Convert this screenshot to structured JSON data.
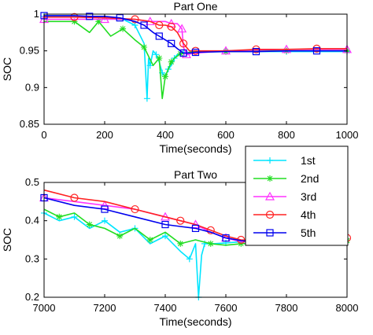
{
  "chart_data": [
    {
      "type": "line",
      "title": "Part One",
      "xlabel": "Time(seconds)",
      "ylabel": "SOC",
      "xlim": [
        0,
        1000
      ],
      "ylim": [
        0.85,
        1.0
      ],
      "xticks": [
        "0",
        "200",
        "400",
        "600",
        "800",
        "1000"
      ],
      "yticks": [
        "0.85",
        "0.9",
        "0.95",
        "1"
      ],
      "grid": false,
      "series": [
        {
          "name": "1st",
          "color": "#00e5ff",
          "marker": "plus",
          "x": [
            0,
            100,
            200,
            260,
            300,
            330,
            340,
            345,
            350,
            360,
            370,
            380,
            390,
            400,
            410,
            420,
            430,
            440,
            460,
            500,
            600,
            700,
            800,
            900,
            1000
          ],
          "y": [
            0.997,
            0.997,
            0.996,
            0.993,
            0.985,
            0.96,
            0.885,
            0.94,
            0.93,
            0.95,
            0.945,
            0.935,
            0.92,
            0.915,
            0.925,
            0.93,
            0.94,
            0.945,
            0.948,
            0.948,
            0.949,
            0.949,
            0.949,
            0.949,
            0.949
          ]
        },
        {
          "name": "2nd",
          "color": "#22dd22",
          "marker": "star",
          "x": [
            0,
            100,
            150,
            180,
            220,
            260,
            300,
            330,
            360,
            380,
            390,
            400,
            410,
            420,
            430,
            450,
            500,
            600,
            700,
            800,
            900,
            1000
          ],
          "y": [
            0.99,
            0.99,
            0.975,
            0.99,
            0.97,
            0.98,
            0.965,
            0.955,
            0.93,
            0.94,
            0.885,
            0.915,
            0.925,
            0.935,
            0.94,
            0.946,
            0.949,
            0.949,
            0.95,
            0.95,
            0.95,
            0.95
          ]
        },
        {
          "name": "3rd",
          "color": "#ff33ff",
          "marker": "triangle",
          "x": [
            0,
            100,
            200,
            300,
            350,
            400,
            420,
            440,
            455,
            460,
            470,
            500,
            600,
            700,
            800,
            900,
            1000
          ],
          "y": [
            0.993,
            0.993,
            0.993,
            0.993,
            0.99,
            0.99,
            0.987,
            0.987,
            0.98,
            0.955,
            0.945,
            0.947,
            0.95,
            0.951,
            0.952,
            0.952,
            0.952
          ]
        },
        {
          "name": "4th",
          "color": "#ff2222",
          "marker": "circle",
          "x": [
            0,
            100,
            200,
            300,
            350,
            380,
            400,
            420,
            440,
            460,
            480,
            500,
            600,
            700,
            800,
            900,
            1000
          ],
          "y": [
            0.996,
            0.996,
            0.995,
            0.993,
            0.99,
            0.985,
            0.985,
            0.983,
            0.975,
            0.96,
            0.95,
            0.95,
            0.95,
            0.952,
            0.952,
            0.953,
            0.953
          ]
        },
        {
          "name": "5th",
          "color": "#0000ee",
          "marker": "square",
          "x": [
            0,
            100,
            150,
            200,
            250,
            300,
            330,
            360,
            380,
            400,
            420,
            440,
            460,
            480,
            500,
            600,
            700,
            800,
            900,
            1000
          ],
          "y": [
            0.998,
            0.998,
            0.997,
            0.997,
            0.995,
            0.99,
            0.985,
            0.975,
            0.97,
            0.965,
            0.96,
            0.953,
            0.947,
            0.947,
            0.948,
            0.949,
            0.949,
            0.95,
            0.95,
            0.95
          ]
        }
      ]
    },
    {
      "type": "line",
      "title": "Part Two",
      "xlabel": "Time(seconds)",
      "ylabel": "SOC",
      "xlim": [
        7000,
        8000
      ],
      "ylim": [
        0.2,
        0.5
      ],
      "xticks": [
        "7000",
        "7200",
        "7400",
        "7600",
        "7800",
        "8000"
      ],
      "yticks": [
        "0.2",
        "0.3",
        "0.4",
        "0.5"
      ],
      "grid": false,
      "series": [
        {
          "name": "1st",
          "color": "#00e5ff",
          "marker": "plus",
          "x": [
            7000,
            7050,
            7100,
            7150,
            7200,
            7250,
            7300,
            7350,
            7400,
            7450,
            7480,
            7500,
            7510,
            7520,
            7530,
            7560,
            7600,
            7650,
            7700,
            7800,
            7900,
            8000
          ],
          "y": [
            0.42,
            0.4,
            0.41,
            0.38,
            0.4,
            0.37,
            0.38,
            0.34,
            0.36,
            0.32,
            0.3,
            0.34,
            0.2,
            0.31,
            0.34,
            0.34,
            0.342,
            0.345,
            0.345,
            0.347,
            0.348,
            0.35
          ]
        },
        {
          "name": "2nd",
          "color": "#22dd22",
          "marker": "star",
          "x": [
            7000,
            7050,
            7100,
            7150,
            7200,
            7250,
            7300,
            7350,
            7400,
            7450,
            7500,
            7550,
            7600,
            7650,
            7700,
            7800,
            7900,
            8000
          ],
          "y": [
            0.43,
            0.41,
            0.42,
            0.39,
            0.38,
            0.36,
            0.38,
            0.35,
            0.37,
            0.34,
            0.35,
            0.34,
            0.336,
            0.34,
            0.342,
            0.345,
            0.347,
            0.348
          ]
        },
        {
          "name": "3rd",
          "color": "#ff33ff",
          "marker": "triangle",
          "x": [
            7000,
            7100,
            7200,
            7300,
            7400,
            7450,
            7500,
            7550,
            7600,
            7650,
            7700,
            7800,
            7900,
            8000
          ],
          "y": [
            0.46,
            0.45,
            0.44,
            0.43,
            0.41,
            0.4,
            0.39,
            0.37,
            0.355,
            0.345,
            0.345,
            0.347,
            0.348,
            0.35
          ]
        },
        {
          "name": "4th",
          "color": "#ff2222",
          "marker": "circle",
          "x": [
            7000,
            7100,
            7200,
            7300,
            7400,
            7450,
            7500,
            7550,
            7600,
            7650,
            7700,
            7800,
            7900,
            8000
          ],
          "y": [
            0.48,
            0.46,
            0.45,
            0.43,
            0.41,
            0.4,
            0.39,
            0.375,
            0.36,
            0.35,
            0.348,
            0.35,
            0.352,
            0.355
          ]
        },
        {
          "name": "5th",
          "color": "#0000ee",
          "marker": "square",
          "x": [
            7000,
            7100,
            7200,
            7300,
            7400,
            7450,
            7500,
            7550,
            7600,
            7650,
            7700,
            7800,
            7900,
            8000
          ],
          "y": [
            0.46,
            0.44,
            0.43,
            0.41,
            0.39,
            0.385,
            0.38,
            0.37,
            0.355,
            0.348,
            0.345,
            0.347,
            0.348,
            0.349
          ]
        }
      ]
    }
  ],
  "legend": {
    "placement": "right, between panels",
    "entries": [
      "1st",
      "2nd",
      "3rd",
      "4th",
      "5th"
    ]
  }
}
